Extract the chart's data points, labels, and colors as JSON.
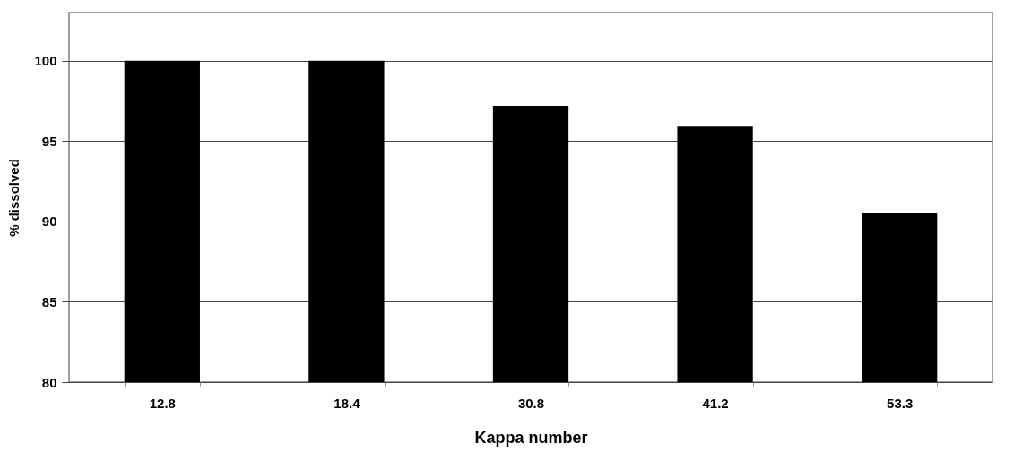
{
  "chart_data": {
    "type": "bar",
    "xlabel": "Kappa number",
    "ylabel": "% dissolved",
    "categories": [
      "12.8",
      "18.4",
      "30.8",
      "41.2",
      "53.3"
    ],
    "values": [
      100,
      100,
      97.2,
      95.9,
      90.5
    ],
    "color": "#000000",
    "ylim": [
      80,
      103
    ],
    "yticks": [
      80,
      85,
      90,
      95,
      100
    ],
    "grid": "y"
  }
}
